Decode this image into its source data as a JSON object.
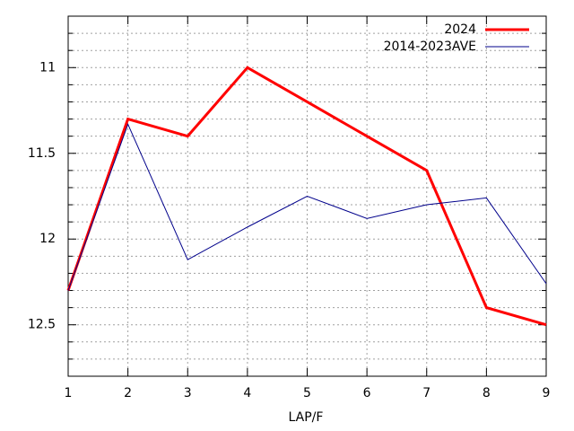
{
  "chart_data": {
    "type": "line",
    "x_label": "LAP/F",
    "x": [
      1,
      2,
      3,
      4,
      5,
      6,
      7,
      8,
      9
    ],
    "series": [
      {
        "name": "2024",
        "color": "#ff0000",
        "width": 3,
        "values": [
          12.3,
          11.3,
          11.4,
          11.0,
          11.2,
          11.4,
          11.6,
          12.4,
          12.5
        ]
      },
      {
        "name": "2014-2023AVE",
        "color": "#00008b",
        "width": 1,
        "values": [
          12.3,
          11.33,
          12.12,
          11.93,
          11.75,
          11.88,
          11.8,
          11.76,
          12.26
        ]
      }
    ],
    "xlim": [
      1,
      9
    ],
    "xticks": [
      1,
      2,
      3,
      4,
      5,
      6,
      7,
      8,
      9
    ],
    "ylim": [
      12.8,
      10.7
    ],
    "yticks": [
      11,
      11.5,
      12,
      12.5
    ],
    "yminorticks": [
      10.8,
      10.9,
      11.1,
      11.2,
      11.3,
      11.4,
      11.6,
      11.7,
      11.8,
      11.9,
      12.1,
      12.2,
      12.3,
      12.4,
      12.6,
      12.7
    ],
    "grid": true,
    "legend": "top-right"
  }
}
